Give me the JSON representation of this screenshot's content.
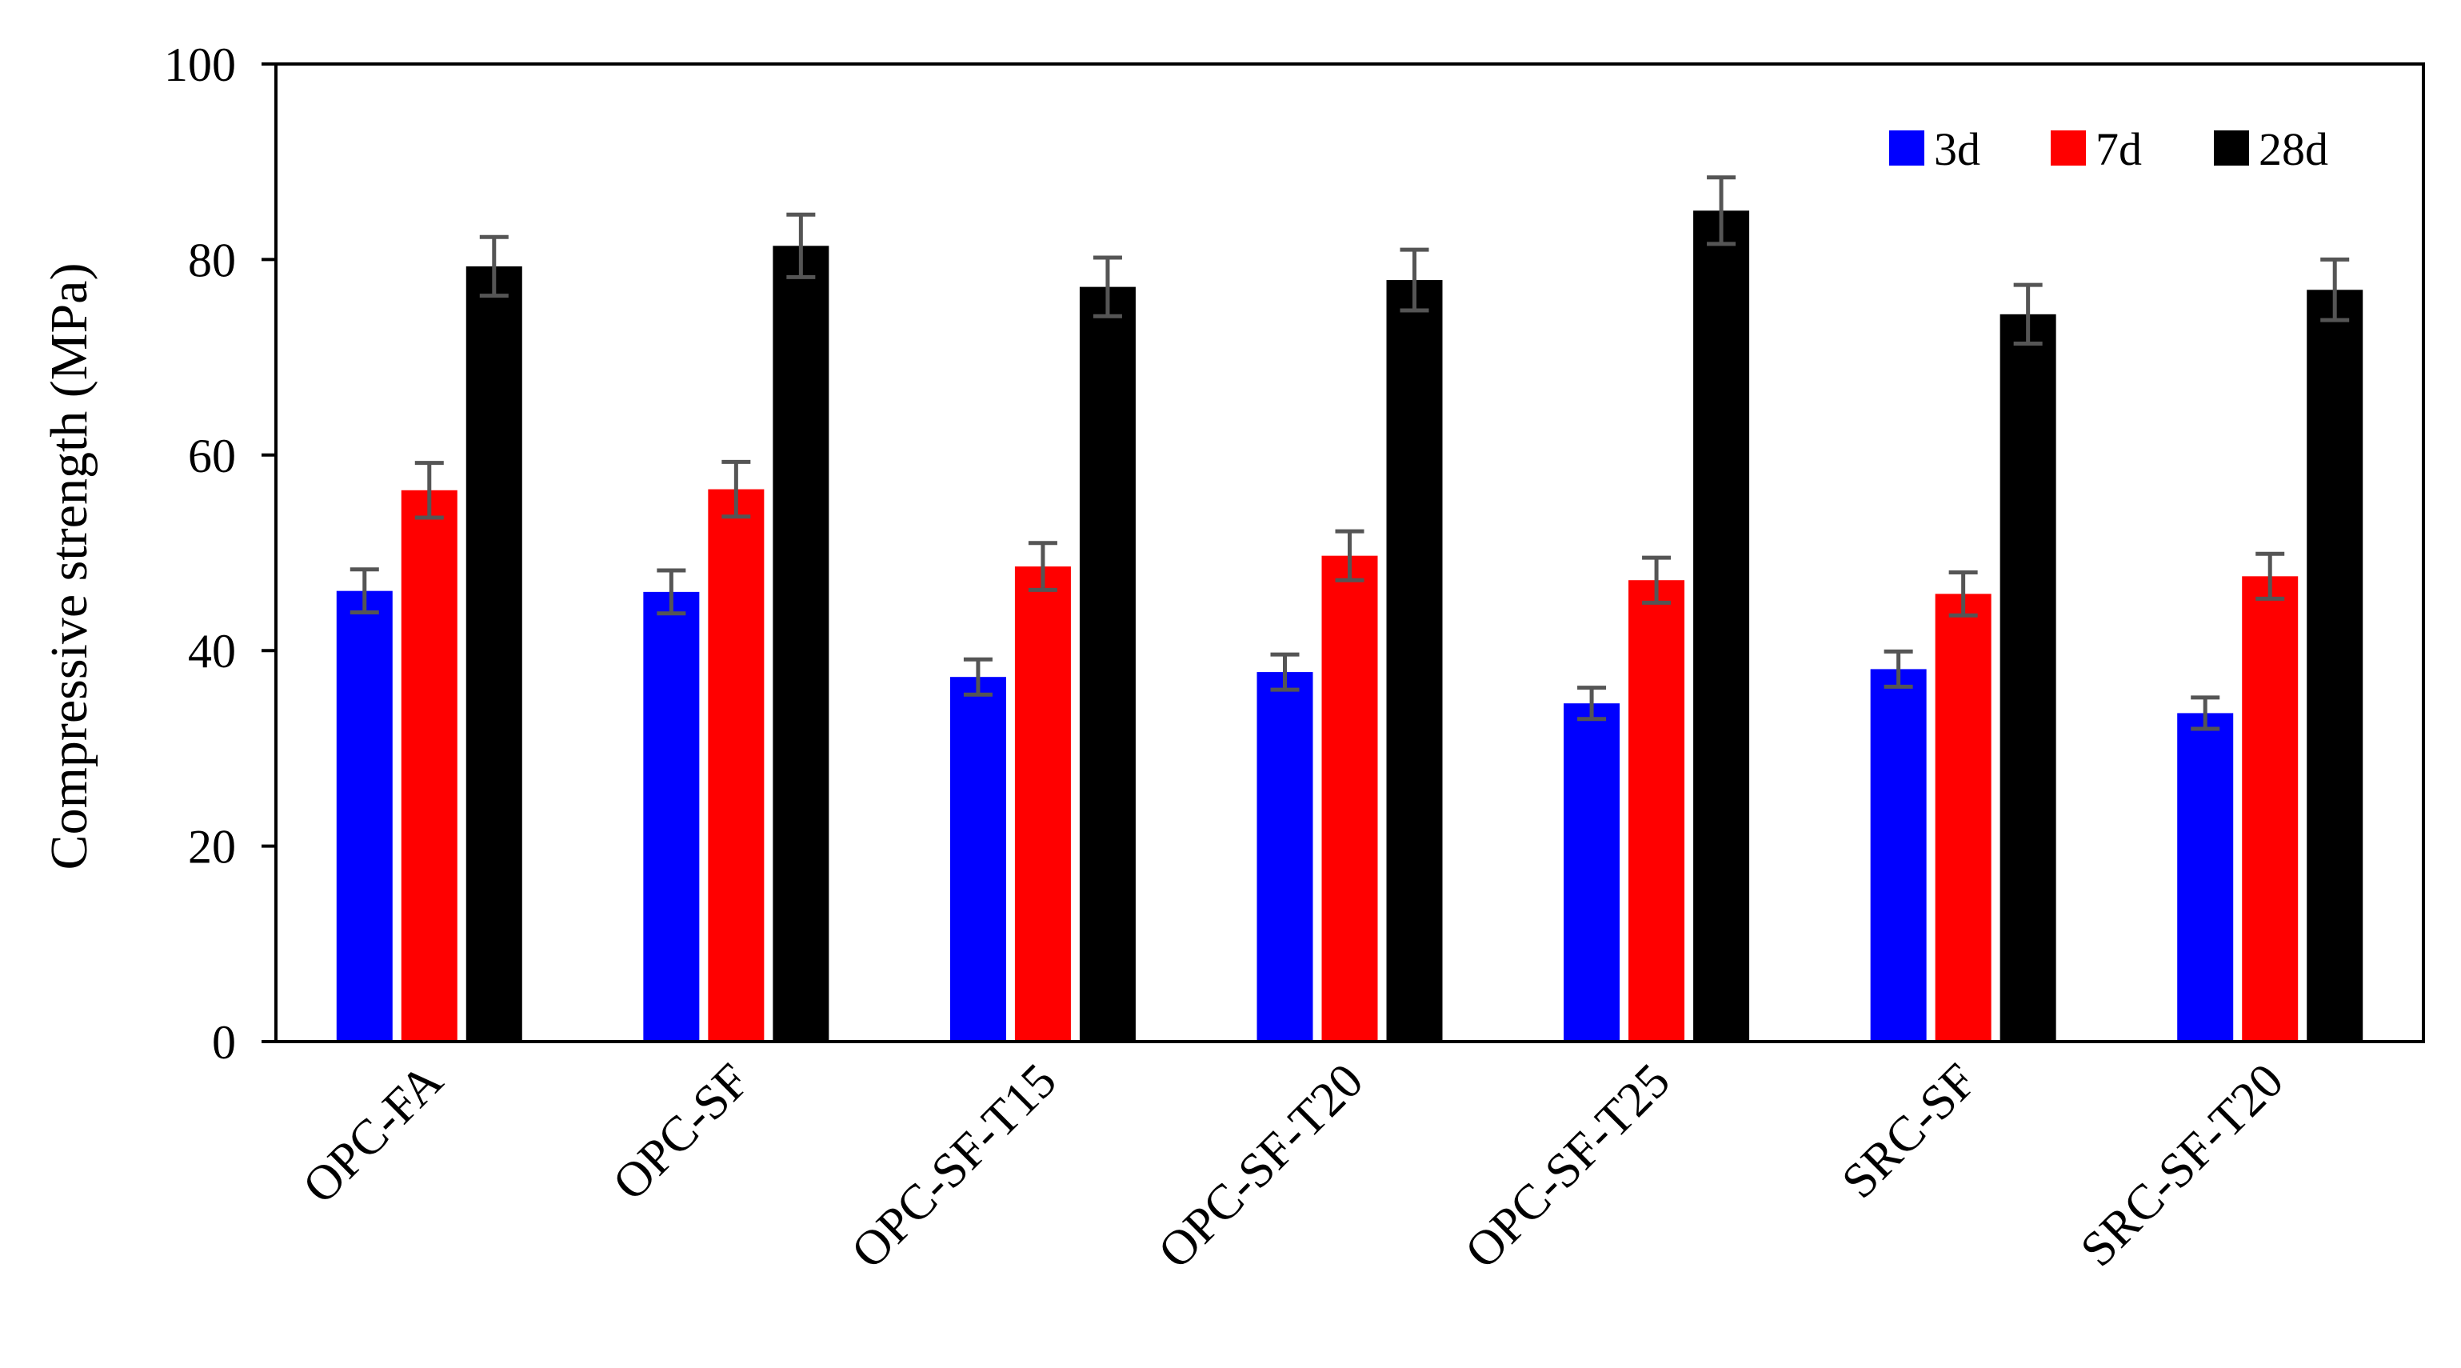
{
  "chart_data": {
    "type": "bar",
    "title": "",
    "xlabel": "",
    "ylabel": "Compressive strength (MPa)",
    "ylim": [
      0,
      100
    ],
    "yticks": [
      0,
      20,
      40,
      60,
      80,
      100
    ],
    "grid": false,
    "legend_position": "top-right",
    "categories": [
      "OPC-FA",
      "OPC-SF",
      "OPC-SF-T15",
      "OPC-SF-T20",
      "OPC-SF-T25",
      "SRC-SF",
      "SRC-SF-T20"
    ],
    "series": [
      {
        "name": "3d",
        "color": "#0000ff",
        "values": [
          46.1,
          46.0,
          37.3,
          37.8,
          34.6,
          38.1,
          33.6
        ],
        "errors": [
          2.2,
          2.2,
          1.8,
          1.8,
          1.6,
          1.8,
          1.6
        ]
      },
      {
        "name": "7d",
        "color": "#ff0000",
        "values": [
          56.4,
          56.5,
          48.6,
          49.7,
          47.2,
          45.8,
          47.6
        ],
        "errors": [
          2.8,
          2.8,
          2.4,
          2.5,
          2.3,
          2.2,
          2.3
        ]
      },
      {
        "name": "28d",
        "color": "#000000",
        "values": [
          79.3,
          81.4,
          77.2,
          77.9,
          85.0,
          74.4,
          76.9
        ],
        "errors": [
          3.0,
          3.2,
          3.0,
          3.1,
          3.4,
          3.0,
          3.1
        ]
      }
    ],
    "error_bar_color": "#555555"
  }
}
